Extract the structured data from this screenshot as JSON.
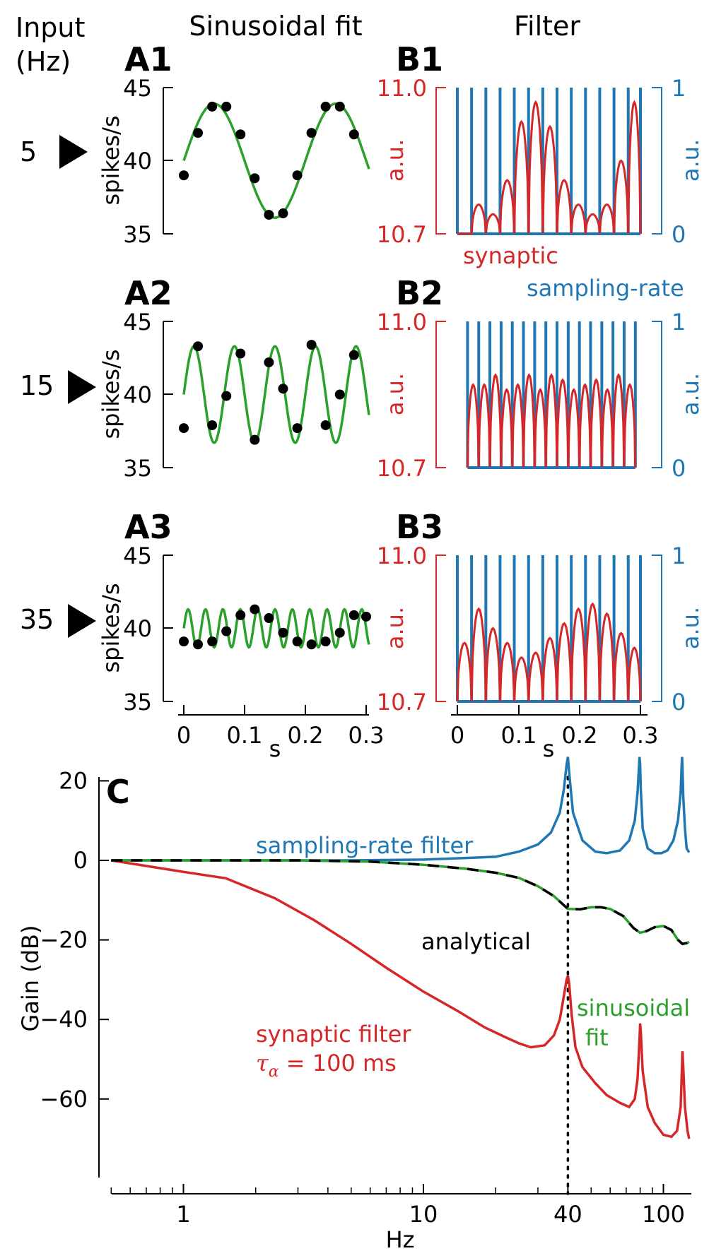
{
  "headers": {
    "input": "Input",
    "input_unit": "(Hz)",
    "fit_col": "Sinusoidal fit",
    "filter_col": "Filter"
  },
  "colors": {
    "green": "#2ca02c",
    "blue": "#1f77b4",
    "red": "#d62728",
    "black": "#000000"
  },
  "markers": {
    "glyph": "triangle-right-icon"
  },
  "chart_data": [
    {
      "id": "A1",
      "type": "scatter",
      "panel_label": "A1",
      "input_hz": "5",
      "ylabel": "spikes/s",
      "ylim": [
        35,
        45
      ],
      "yticks": [
        45,
        40,
        35
      ],
      "xlim": [
        0,
        0.3
      ],
      "fit": {
        "series_type": "line",
        "freq_hz": 5,
        "mean": 40,
        "amp": 3.9,
        "phase": 0
      },
      "points": {
        "x": [
          0,
          0.0233,
          0.0467,
          0.07,
          0.0933,
          0.1167,
          0.14,
          0.1633,
          0.1867,
          0.21,
          0.2333,
          0.2567,
          0.28
        ],
        "y": [
          39.0,
          41.9,
          43.7,
          43.7,
          41.8,
          38.8,
          36.3,
          36.4,
          39.0,
          41.9,
          43.7,
          43.7,
          41.8
        ]
      }
    },
    {
      "id": "A2",
      "type": "scatter",
      "panel_label": "A2",
      "input_hz": "15",
      "ylabel": "spikes/s",
      "ylim": [
        35,
        45
      ],
      "yticks": [
        45,
        40,
        35
      ],
      "xlim": [
        0,
        0.3
      ],
      "fit": {
        "series_type": "line",
        "freq_hz": 15,
        "mean": 40,
        "amp": 3.3,
        "phase": 0
      },
      "points": {
        "x": [
          0,
          0.0233,
          0.0467,
          0.07,
          0.0933,
          0.1167,
          0.14,
          0.1633,
          0.1867,
          0.21,
          0.2333,
          0.2567,
          0.28
        ],
        "y": [
          37.7,
          43.3,
          37.9,
          39.9,
          42.8,
          36.9,
          42.2,
          40.4,
          37.7,
          43.4,
          37.9,
          40.0,
          42.7
        ]
      }
    },
    {
      "id": "A3",
      "type": "scatter",
      "panel_label": "A3",
      "input_hz": "35",
      "ylabel": "spikes/s",
      "ylim": [
        35,
        45
      ],
      "yticks": [
        45,
        40,
        35
      ],
      "xlim": [
        0,
        0.3
      ],
      "xticks": [
        "0",
        "0.1",
        "0.2",
        "0.3"
      ],
      "xlabel": "s",
      "fit": {
        "series_type": "line",
        "freq_hz": 35,
        "mean": 40,
        "amp": 1.3,
        "phase": 0
      },
      "points": {
        "x": [
          0,
          0.0233,
          0.0467,
          0.07,
          0.0933,
          0.1167,
          0.14,
          0.1633,
          0.1867,
          0.21,
          0.2333,
          0.2567,
          0.28,
          0.3
        ],
        "y": [
          39.1,
          38.9,
          39.1,
          39.8,
          40.9,
          41.3,
          40.7,
          39.7,
          39.1,
          38.9,
          39.1,
          39.7,
          40.9,
          40.8
        ]
      }
    },
    {
      "id": "B1",
      "type": "line",
      "panel_label": "B1",
      "ylabel_left": "a.u.",
      "ylabel_right": "a.u.",
      "ylim_left": [
        10.7,
        11.0
      ],
      "yticks_left": [
        "11.0",
        "10.7"
      ],
      "ylim_right": [
        0,
        1
      ],
      "yticks_right": [
        "1",
        "0"
      ],
      "xlim": [
        0,
        0.3
      ],
      "series_labels": {
        "synaptic": "synaptic",
        "sampling": "sampling-rate"
      },
      "spike_times": [
        0,
        0.0233,
        0.0467,
        0.07,
        0.0933,
        0.1167,
        0.14,
        0.1633,
        0.1867,
        0.21,
        0.2333,
        0.2567,
        0.28,
        0.3
      ],
      "synaptic_peaks": [
        10.7,
        10.76,
        10.74,
        10.81,
        10.93,
        10.97,
        10.92,
        10.81,
        10.76,
        10.74,
        10.76,
        10.85,
        10.97
      ]
    },
    {
      "id": "B2",
      "type": "line",
      "panel_label": "B2",
      "ylabel_left": "a.u.",
      "ylabel_right": "a.u.",
      "ylim_left": [
        10.7,
        11.0
      ],
      "yticks_left": [
        "11.0",
        "10.7"
      ],
      "ylim_right": [
        0,
        1
      ],
      "yticks_right": [
        "1",
        "0"
      ],
      "xlim": [
        0,
        0.3
      ],
      "spike_times": [
        0.0167,
        0.035,
        0.0533,
        0.0717,
        0.09,
        0.1083,
        0.1267,
        0.145,
        0.1633,
        0.1817,
        0.2,
        0.2183,
        0.2367,
        0.255,
        0.2733,
        0.2917
      ],
      "synaptic_peaks": [
        10.87,
        10.87,
        10.89,
        10.86,
        10.87,
        10.89,
        10.86,
        10.89,
        10.88,
        10.86,
        10.87,
        10.88,
        10.86,
        10.89,
        10.87,
        10.87
      ]
    },
    {
      "id": "B3",
      "type": "line",
      "panel_label": "B3",
      "ylabel_left": "a.u.",
      "ylabel_right": "a.u.",
      "ylim_left": [
        10.7,
        11.0
      ],
      "yticks_left": [
        "11.0",
        "10.7"
      ],
      "ylim_right": [
        0,
        1
      ],
      "yticks_right": [
        "1",
        "0"
      ],
      "xlim": [
        0,
        0.3
      ],
      "xticks": [
        "0",
        "0.1",
        "0.2",
        "0.3"
      ],
      "xlabel": "s",
      "spike_times": [
        0,
        0.0233,
        0.0467,
        0.07,
        0.0933,
        0.1167,
        0.14,
        0.1633,
        0.1867,
        0.21,
        0.2333,
        0.2567,
        0.28,
        0.3
      ],
      "synaptic_peaks": [
        10.82,
        10.89,
        10.85,
        10.82,
        10.79,
        10.8,
        10.83,
        10.86,
        10.89,
        10.9,
        10.88,
        10.84,
        10.81,
        10.8
      ]
    },
    {
      "id": "C",
      "type": "line",
      "panel_label": "C",
      "xscale": "log",
      "xlabel": "Hz",
      "ylabel": "Gain (dB)",
      "xlim": [
        0.5,
        120
      ],
      "ylim": [
        -71,
        30
      ],
      "xticks": [
        1,
        10,
        40,
        100
      ],
      "yticks": [
        20,
        0,
        -20,
        -40,
        -60
      ],
      "vline_hz": 40,
      "series": [
        {
          "name": "sampling-rate filter",
          "color": "blue",
          "x": [
            0.5,
            5,
            10,
            15,
            20,
            25,
            30,
            34,
            37,
            38.5,
            39.5,
            40,
            40.5,
            42,
            46,
            52,
            58,
            66,
            72,
            76,
            78,
            79.5,
            80,
            80.5,
            82,
            86,
            92,
            98,
            104,
            110,
            115,
            118,
            119,
            119.6,
            120,
            121,
            123,
            125,
            128
          ],
          "y": [
            0,
            0,
            0.2,
            0.6,
            0.9,
            2.2,
            4,
            7,
            12,
            18,
            24,
            26,
            22,
            12,
            5,
            2.2,
            1.8,
            2.5,
            5,
            10,
            17,
            26,
            24,
            18,
            8,
            3,
            1.8,
            1.8,
            2.5,
            5,
            10,
            17,
            23,
            26,
            24,
            16,
            8,
            3,
            2
          ]
        },
        {
          "name": "analytical",
          "color": "black",
          "x": [
            0.5,
            3,
            6,
            10,
            15,
            20,
            25,
            30,
            35,
            40,
            45,
            50,
            55,
            60,
            68,
            75,
            80,
            85,
            92,
            100,
            108,
            115,
            120,
            125,
            128
          ],
          "y": [
            0,
            0,
            -0.3,
            -1.1,
            -2.1,
            -3.1,
            -4.4,
            -6.5,
            -9,
            -12.2,
            -12.3,
            -11.8,
            -11.8,
            -12.2,
            -14,
            -17,
            -18.2,
            -17.8,
            -16.8,
            -16.5,
            -17.5,
            -20,
            -21,
            -20.8,
            -20.5
          ]
        },
        {
          "name": "synaptic filter",
          "color": "red",
          "x": [
            0.5,
            1,
            1.5,
            2.4,
            3.5,
            5,
            7,
            10,
            14,
            18,
            22,
            25,
            28,
            32,
            35,
            37,
            38.5,
            39.5,
            40,
            40.5,
            41.5,
            43,
            46,
            52,
            58,
            66,
            72,
            76,
            78,
            79.5,
            80,
            80.5,
            82,
            86,
            92,
            100,
            108,
            114,
            118,
            119.5,
            120,
            121,
            123,
            126,
            128
          ],
          "y": [
            0,
            -2.9,
            -4.5,
            -9.5,
            -15,
            -21,
            -27,
            -33,
            -38,
            -42,
            -44.5,
            -46,
            -47,
            -46.5,
            -44,
            -40,
            -34,
            -30,
            -29,
            -31,
            -39,
            -47,
            -52,
            -56,
            -59,
            -61,
            -62,
            -60,
            -55,
            -45,
            -41,
            -43,
            -53,
            -62,
            -66,
            -69,
            -69.5,
            -68,
            -62,
            -52,
            -48,
            -52,
            -62,
            -68,
            -70
          ]
        }
      ],
      "legend_labels": {
        "sampling": "sampling-rate filter",
        "analytical": "analytical",
        "sinus_line1": "sinusoidal",
        "sinus_line2": "fit",
        "synaptic": "synaptic filter",
        "tau_symbol": "τ",
        "tau_sub": "α",
        "tau_value": " = 100 ms"
      }
    }
  ]
}
